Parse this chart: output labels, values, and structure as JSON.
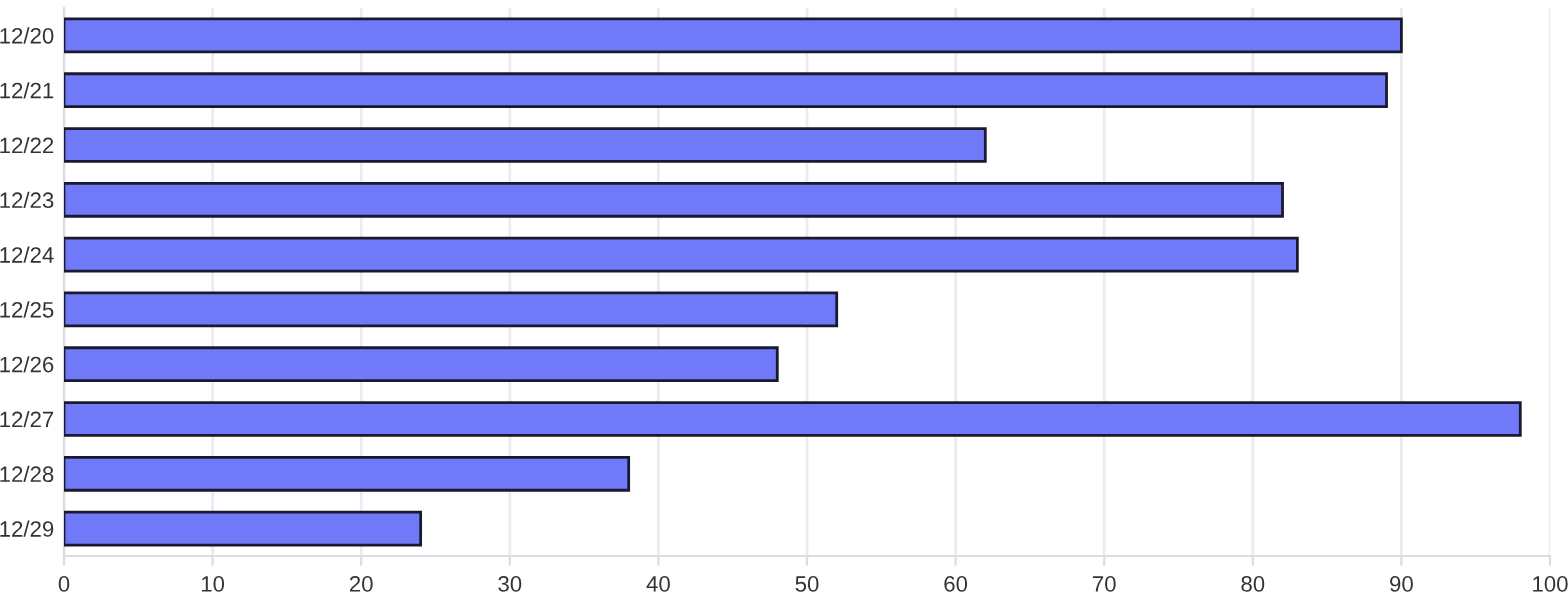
{
  "chart_data": {
    "type": "bar",
    "orientation": "horizontal",
    "categories": [
      "12/20",
      "12/21",
      "12/22",
      "12/23",
      "12/24",
      "12/25",
      "12/26",
      "12/27",
      "12/28",
      "12/29"
    ],
    "values": [
      90,
      89,
      62,
      82,
      83,
      52,
      48,
      98,
      38,
      24
    ],
    "color": "#7079f7",
    "xlim": [
      0,
      100
    ],
    "xticks": [
      0,
      10,
      20,
      30,
      40,
      50,
      60,
      70,
      80,
      90,
      100
    ],
    "grid": "x"
  }
}
